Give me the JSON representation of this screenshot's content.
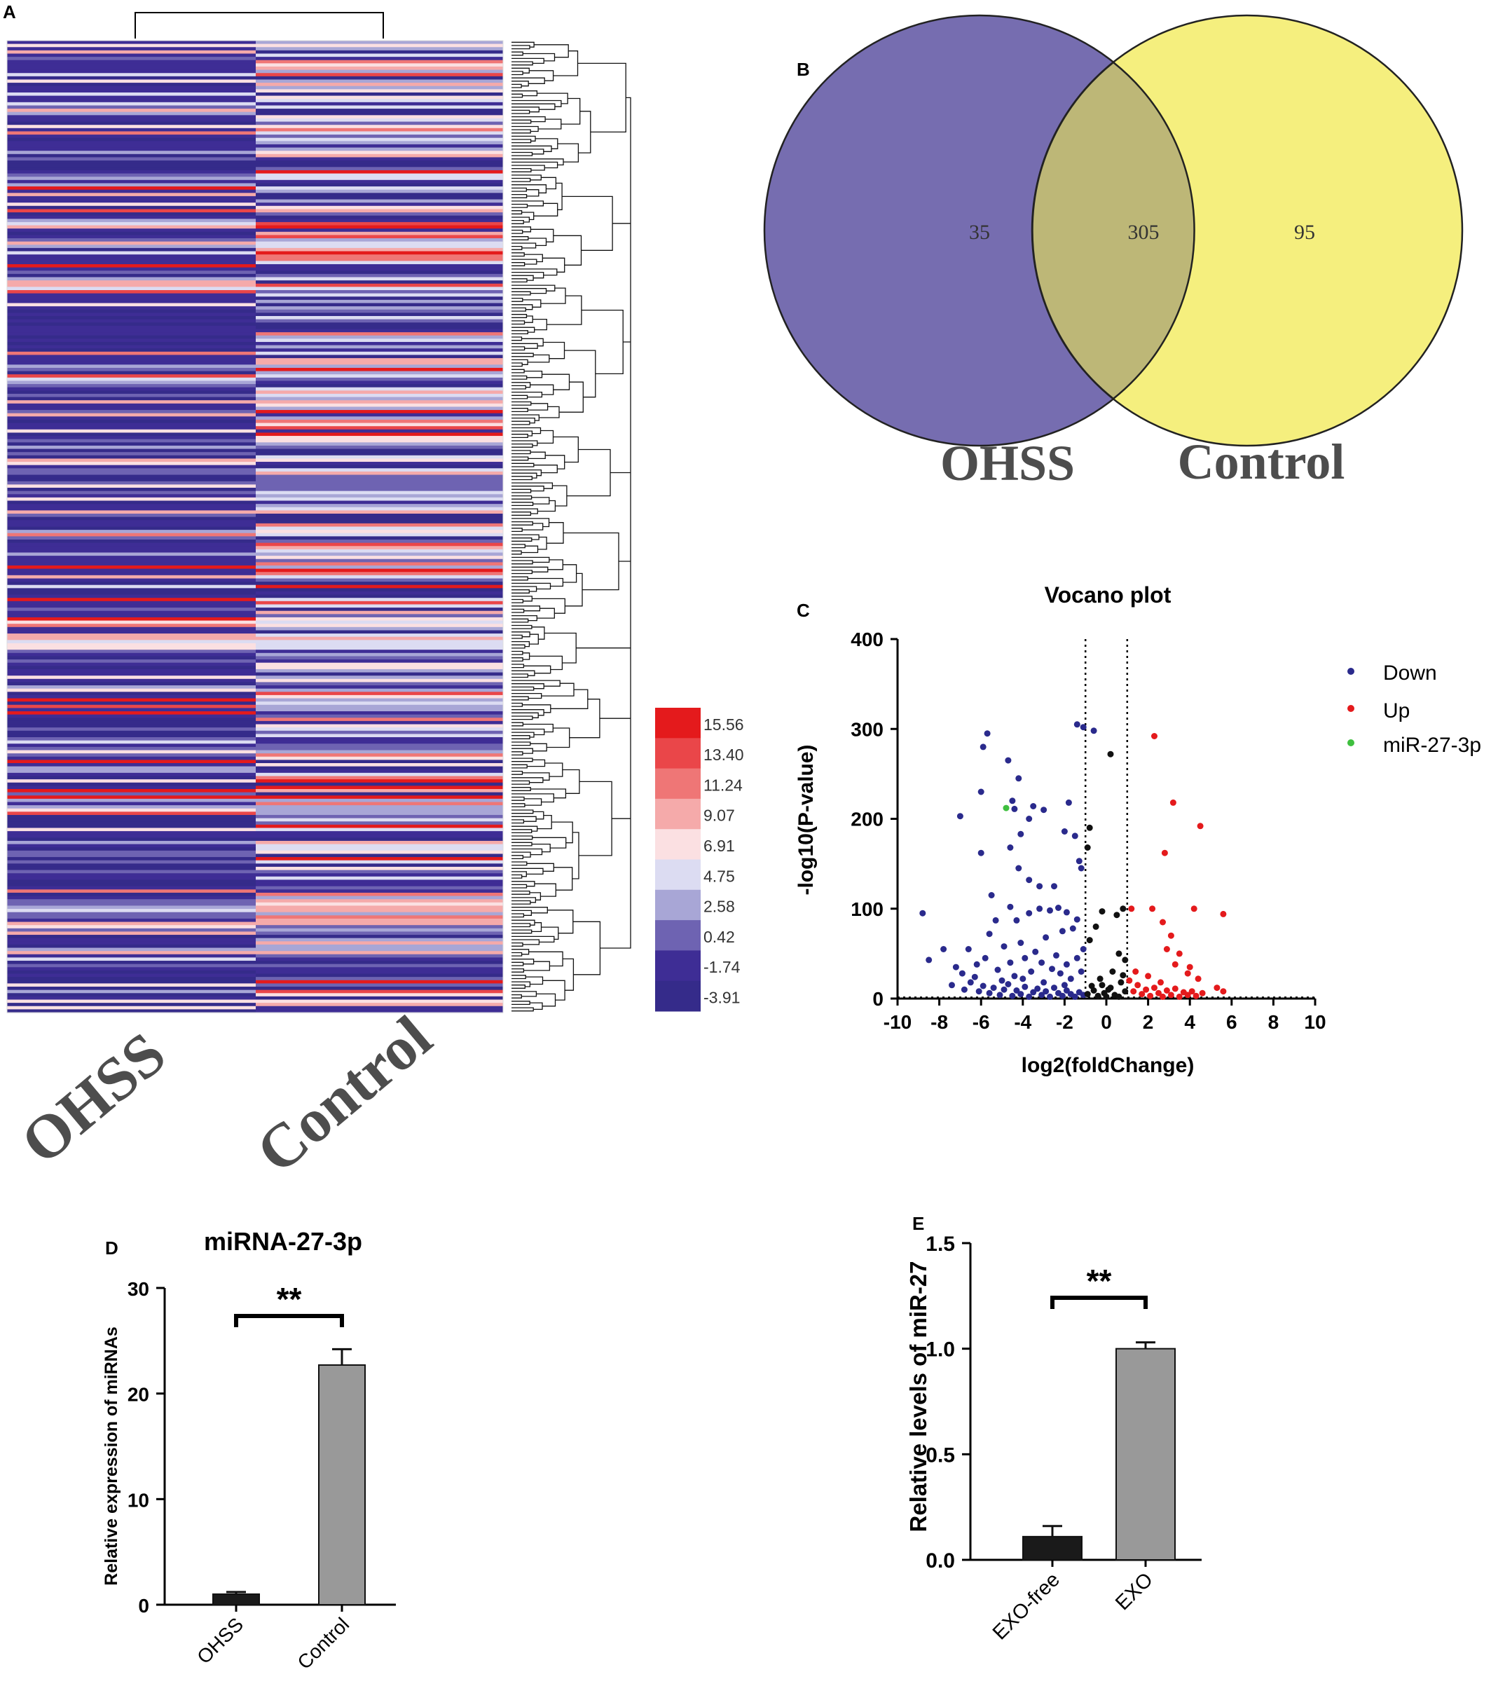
{
  "panels": {
    "A": {
      "letter": "A"
    },
    "B": {
      "letter": "B"
    },
    "C": {
      "letter": "C"
    },
    "D": {
      "letter": "D"
    },
    "E": {
      "letter": "E"
    }
  },
  "chart_data": [
    {
      "panel": "A",
      "type": "heatmap",
      "title": "",
      "columns": [
        "OHSS",
        "Control"
      ],
      "colorbar": {
        "ticks": [
          "15.56",
          "13.40",
          "11.24",
          "9.07",
          "6.91",
          "4.75",
          "2.58",
          "0.42",
          "-1.74",
          "-3.91"
        ],
        "colors": [
          "#e41a1c",
          "#ea4649",
          "#ef7676",
          "#f5aaaa",
          "#fbe0e2",
          "#dcdcf2",
          "#a8a6d6",
          "#6e63b2",
          "#3e2d95",
          "#352b8a"
        ]
      },
      "dendrogram": "rows and columns clustered"
    },
    {
      "panel": "B",
      "type": "venn",
      "sets": [
        {
          "name": "OHSS",
          "only": "35",
          "color": "#766db0"
        },
        {
          "name": "Control",
          "only": "95",
          "color": "#f5ee7a"
        }
      ],
      "intersection": "305"
    },
    {
      "panel": "C",
      "type": "scatter",
      "title": "Vocano plot",
      "xlabel": "log2(foldChange)",
      "ylabel": "-log10(P-value)",
      "xlim": [
        -10,
        10
      ],
      "ylim": [
        0,
        400
      ],
      "xticks": [
        "-10",
        "-8",
        "-6",
        "-4",
        "-2",
        "0",
        "2",
        "4",
        "6",
        "8",
        "10"
      ],
      "yticks": [
        "0",
        "100",
        "200",
        "300",
        "400"
      ],
      "thresholds": {
        "vlines": [
          -1,
          1
        ],
        "hline": 1.3
      },
      "legend_position": "right",
      "series": [
        {
          "name": "Down",
          "color": "#2a2a8c",
          "points": [
            [
              -5.7,
              295
            ],
            [
              -5.9,
              280
            ],
            [
              -6.0,
              230
            ],
            [
              -7.0,
              203
            ],
            [
              -6.0,
              162
            ],
            [
              -4.7,
              265
            ],
            [
              -4.2,
              245
            ],
            [
              -4.5,
              220
            ],
            [
              -4.4,
              211
            ],
            [
              -3.5,
              214
            ],
            [
              -3.0,
              210
            ],
            [
              -3.7,
              200
            ],
            [
              -4.1,
              183
            ],
            [
              -4.6,
              168
            ],
            [
              -4.2,
              145
            ],
            [
              -3.7,
              132
            ],
            [
              -3.2,
              125
            ],
            [
              -2.5,
              125
            ],
            [
              -1.4,
              305
            ],
            [
              -1.1,
              302
            ],
            [
              -0.6,
              298
            ],
            [
              -1.8,
              218
            ],
            [
              -2.0,
              186
            ],
            [
              -1.5,
              181
            ],
            [
              -1.3,
              153
            ],
            [
              -1.2,
              145
            ],
            [
              -8.8,
              95
            ],
            [
              -5.5,
              115
            ],
            [
              -5.3,
              87
            ],
            [
              -4.6,
              102
            ],
            [
              -4.3,
              87
            ],
            [
              -3.7,
              95
            ],
            [
              -3.2,
              100
            ],
            [
              -2.7,
              98
            ],
            [
              -2.3,
              101
            ],
            [
              -1.9,
              96
            ],
            [
              -1.6,
              78
            ],
            [
              -2.1,
              75
            ],
            [
              -1.4,
              88
            ],
            [
              -8.5,
              43
            ],
            [
              -7.8,
              55
            ],
            [
              -7.2,
              35
            ],
            [
              -6.9,
              28
            ],
            [
              -6.6,
              55
            ],
            [
              -6.2,
              38
            ],
            [
              -5.8,
              45
            ],
            [
              -5.6,
              72
            ],
            [
              -5.2,
              32
            ],
            [
              -4.9,
              58
            ],
            [
              -4.6,
              40
            ],
            [
              -4.4,
              25
            ],
            [
              -4.1,
              62
            ],
            [
              -3.9,
              45
            ],
            [
              -3.6,
              30
            ],
            [
              -3.4,
              52
            ],
            [
              -3.1,
              40
            ],
            [
              -2.9,
              68
            ],
            [
              -2.6,
              33
            ],
            [
              -2.4,
              48
            ],
            [
              -2.2,
              28
            ],
            [
              -1.9,
              38
            ],
            [
              -1.7,
              22
            ],
            [
              -1.4,
              45
            ],
            [
              -1.2,
              30
            ],
            [
              -1.1,
              55
            ],
            [
              -7.4,
              15
            ],
            [
              -6.8,
              10
            ],
            [
              -6.5,
              18
            ],
            [
              -6.1,
              8
            ],
            [
              -5.9,
              14
            ],
            [
              -5.6,
              6
            ],
            [
              -5.4,
              12
            ],
            [
              -5.1,
              4
            ],
            [
              -4.9,
              10
            ],
            [
              -4.7,
              16
            ],
            [
              -4.5,
              3
            ],
            [
              -4.3,
              9
            ],
            [
              -4.1,
              5
            ],
            [
              -3.9,
              13
            ],
            [
              -3.7,
              2
            ],
            [
              -3.5,
              7
            ],
            [
              -3.3,
              11
            ],
            [
              -3.1,
              4
            ],
            [
              -2.9,
              8
            ],
            [
              -2.7,
              2
            ],
            [
              -2.5,
              12
            ],
            [
              -2.3,
              6
            ],
            [
              -2.1,
              3
            ],
            [
              -1.9,
              9
            ],
            [
              -1.7,
              5
            ],
            [
              -1.5,
              2
            ],
            [
              -1.3,
              7
            ],
            [
              -1.1,
              4
            ],
            [
              -5.0,
              20
            ],
            [
              -4.0,
              22
            ],
            [
              -3.0,
              18
            ],
            [
              -2.0,
              15
            ],
            [
              -6.3,
              24
            ]
          ]
        },
        {
          "name": "Up",
          "color": "#e41a1c",
          "points": [
            [
              2.3,
              292
            ],
            [
              3.2,
              218
            ],
            [
              4.5,
              192
            ],
            [
              2.8,
              162
            ],
            [
              1.2,
              100
            ],
            [
              2.2,
              100
            ],
            [
              4.2,
              100
            ],
            [
              5.6,
              94
            ],
            [
              2.7,
              85
            ],
            [
              3.1,
              70
            ],
            [
              2.9,
              55
            ],
            [
              3.5,
              50
            ],
            [
              4.0,
              35
            ],
            [
              3.3,
              38
            ],
            [
              3.9,
              28
            ],
            [
              4.4,
              22
            ],
            [
              5.3,
              12
            ],
            [
              5.6,
              8
            ],
            [
              1.1,
              20
            ],
            [
              1.3,
              8
            ],
            [
              1.5,
              15
            ],
            [
              1.7,
              5
            ],
            [
              1.9,
              10
            ],
            [
              2.1,
              3
            ],
            [
              2.3,
              12
            ],
            [
              2.5,
              6
            ],
            [
              2.7,
              2
            ],
            [
              2.9,
              9
            ],
            [
              3.1,
              4
            ],
            [
              3.3,
              11
            ],
            [
              3.5,
              2
            ],
            [
              3.7,
              7
            ],
            [
              3.9,
              4
            ],
            [
              4.1,
              8
            ],
            [
              4.3,
              3
            ],
            [
              4.6,
              6
            ],
            [
              1.4,
              30
            ],
            [
              2.0,
              25
            ],
            [
              2.6,
              18
            ]
          ]
        },
        {
          "name": "miR-27-3p",
          "color": "#3fbf3f",
          "points": [
            [
              -4.8,
              212
            ]
          ]
        },
        {
          "name": "",
          "color": "#111111",
          "points": [
            [
              0.2,
              272
            ],
            [
              -0.8,
              190
            ],
            [
              -0.9,
              168
            ],
            [
              0.8,
              100
            ],
            [
              0.5,
              93
            ],
            [
              -0.2,
              97
            ],
            [
              -0.5,
              80
            ],
            [
              -0.8,
              65
            ],
            [
              0.6,
              50
            ],
            [
              0.9,
              43
            ],
            [
              0.3,
              30
            ],
            [
              -0.3,
              22
            ],
            [
              0.7,
              18
            ],
            [
              -0.7,
              14
            ],
            [
              0.1,
              10
            ],
            [
              -0.1,
              6
            ],
            [
              0.4,
              4
            ],
            [
              -0.4,
              3
            ],
            [
              0.9,
              8
            ],
            [
              -0.9,
              5
            ],
            [
              0.6,
              2
            ],
            [
              -0.6,
              9
            ],
            [
              0.0,
              2
            ],
            [
              0.2,
              12
            ],
            [
              -0.2,
              15
            ],
            [
              0.8,
              26
            ]
          ]
        }
      ]
    },
    {
      "panel": "D",
      "type": "bar",
      "title": "miRNA-27-3p",
      "xlabel": "",
      "ylabel": "Relative expression of miRNAs",
      "categories": [
        "OHSS",
        "Control"
      ],
      "values": [
        1.0,
        22.7
      ],
      "errors": [
        0.2,
        1.5
      ],
      "colors": [
        "#1a1a1a",
        "#999999"
      ],
      "ylim": [
        0,
        30
      ],
      "yticks": [
        "0",
        "10",
        "20",
        "30"
      ],
      "significance": "**"
    },
    {
      "panel": "E",
      "type": "bar",
      "title": "",
      "xlabel": "",
      "ylabel": "Relative levels of miR-27",
      "categories": [
        "EXO-free",
        "EXO"
      ],
      "values": [
        0.11,
        1.0
      ],
      "errors": [
        0.05,
        0.03
      ],
      "colors": [
        "#1a1a1a",
        "#999999"
      ],
      "ylim": [
        0,
        1.5
      ],
      "yticks": [
        "0.0",
        "0.5",
        "1.0",
        "1.5"
      ],
      "significance": "**"
    }
  ]
}
